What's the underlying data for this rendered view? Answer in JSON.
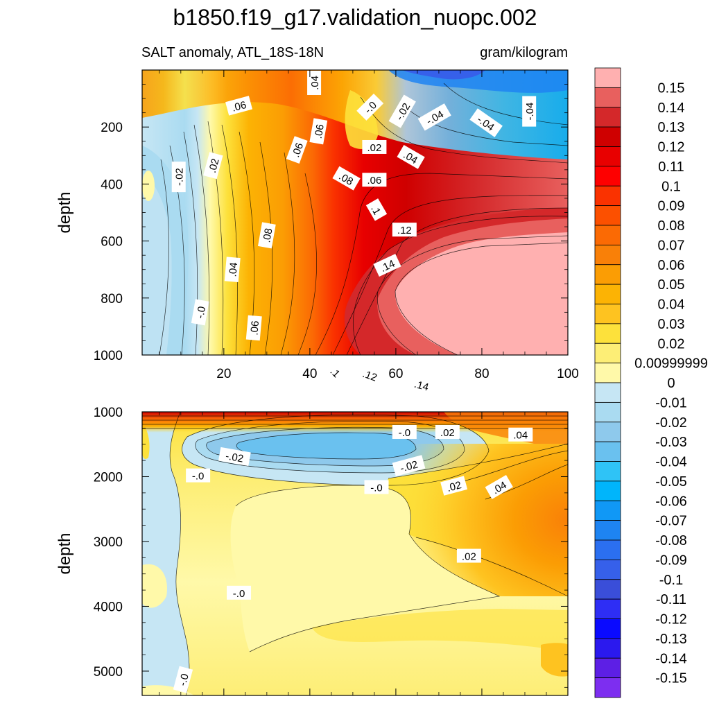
{
  "figure": {
    "title": "b1850.f19_g17.validation_nuopc.002",
    "subtitle_left": "SALT anomaly, ATL_18S-18N",
    "subtitle_right": "gram/kilogram"
  },
  "chart_data": [
    {
      "type": "heatmap",
      "panel": "upper",
      "xlabel": "",
      "ylabel": "depth",
      "xlim": [
        1,
        100
      ],
      "ylim": [
        0,
        1000
      ],
      "y_reversed": true,
      "x_ticks": [
        20,
        40,
        60,
        80,
        100
      ],
      "y_ticks": [
        200,
        400,
        600,
        800,
        1000
      ],
      "contour_labels": [
        {
          "text": ".04",
          "x": 41.0,
          "y": 45,
          "angle": -90
        },
        {
          "text": ".06",
          "x": 23.5,
          "y": 125,
          "angle": -15
        },
        {
          "text": "-.0",
          "x": 54.0,
          "y": 130,
          "angle": -45
        },
        {
          "text": "-.02",
          "x": 61.5,
          "y": 145,
          "angle": -60
        },
        {
          "text": "-.04",
          "x": 69.0,
          "y": 165,
          "angle": -30
        },
        {
          "text": "-.04",
          "x": 81.0,
          "y": 185,
          "angle": 35
        },
        {
          "text": "-.04",
          "x": 91.0,
          "y": 145,
          "angle": -90
        },
        {
          "text": ".06",
          "x": 37.0,
          "y": 280,
          "angle": -70
        },
        {
          "text": ".06",
          "x": 42.0,
          "y": 215,
          "angle": -80
        },
        {
          "text": ".02",
          "x": 55.0,
          "y": 270,
          "angle": 0
        },
        {
          "text": ".04",
          "x": 63.5,
          "y": 305,
          "angle": 30
        },
        {
          "text": ".08",
          "x": 48.5,
          "y": 380,
          "angle": 30
        },
        {
          "text": ".06",
          "x": 55.0,
          "y": 385,
          "angle": 0
        },
        {
          "text": "-.02",
          "x": 9.5,
          "y": 375,
          "angle": -90
        },
        {
          "text": ".02",
          "x": 17.5,
          "y": 335,
          "angle": -75
        },
        {
          "text": ".1",
          "x": 55.5,
          "y": 490,
          "angle": 60
        },
        {
          "text": ".12",
          "x": 62.0,
          "y": 560,
          "angle": 0
        },
        {
          "text": ".08",
          "x": 30.0,
          "y": 580,
          "angle": -80
        },
        {
          "text": ".04",
          "x": 22.0,
          "y": 700,
          "angle": -85
        },
        {
          "text": ".14",
          "x": 58.0,
          "y": 685,
          "angle": -25
        },
        {
          "text": "-.0",
          "x": 14.5,
          "y": 850,
          "angle": -80
        },
        {
          "text": ".06",
          "x": 27.0,
          "y": 905,
          "angle": -85
        },
        {
          "text": ".1",
          "x": 46.0,
          "y": 1060,
          "angle": 45
        },
        {
          "text": ".12",
          "x": 54.0,
          "y": 1070,
          "angle": 20
        },
        {
          "text": ".14",
          "x": 66.0,
          "y": 1105,
          "angle": 15
        }
      ]
    },
    {
      "type": "heatmap",
      "panel": "lower",
      "xlabel": "",
      "ylabel": "depth",
      "xlim": [
        1,
        100
      ],
      "ylim": [
        1000,
        5375
      ],
      "y_reversed": true,
      "x_ticks": [
        20,
        40,
        60,
        80,
        100
      ],
      "y_ticks": [
        1000,
        2000,
        3000,
        4000,
        5000
      ],
      "contour_labels": [
        {
          "text": "-.0",
          "x": 62.0,
          "y": 1310,
          "angle": 0
        },
        {
          "text": ".02",
          "x": 72.0,
          "y": 1310,
          "angle": 0
        },
        {
          "text": ".04",
          "x": 89.0,
          "y": 1350,
          "angle": 0
        },
        {
          "text": "-.02",
          "x": 22.5,
          "y": 1690,
          "angle": 10
        },
        {
          "text": "-.02",
          "x": 63.0,
          "y": 1830,
          "angle": -15
        },
        {
          "text": "-.0",
          "x": 14.0,
          "y": 1980,
          "angle": 0
        },
        {
          "text": "-.0",
          "x": 55.5,
          "y": 2160,
          "angle": 0
        },
        {
          "text": ".02",
          "x": 73.5,
          "y": 2140,
          "angle": -15
        },
        {
          "text": ".04",
          "x": 84.0,
          "y": 2160,
          "angle": -30
        },
        {
          "text": ".02",
          "x": 77.0,
          "y": 3220,
          "angle": 0
        },
        {
          "text": "-.0",
          "x": 23.5,
          "y": 3790,
          "angle": 0
        },
        {
          "text": "-.0",
          "x": 10.5,
          "y": 5130,
          "angle": -75
        }
      ]
    }
  ],
  "colorbar": {
    "levels": [
      "0.15",
      "0.14",
      "0.13",
      "0.12",
      "0.11",
      "0.1",
      "0.09",
      "0.08",
      "0.07",
      "0.06",
      "0.05",
      "0.04",
      "0.03",
      "0.02",
      "0.00999999",
      "0",
      "-0.01",
      "-0.02",
      "-0.03",
      "-0.04",
      "-0.05",
      "-0.06",
      "-0.07",
      "-0.08",
      "-0.09",
      "-0.1",
      "-0.11",
      "-0.12",
      "-0.13",
      "-0.14",
      "-0.15"
    ],
    "colors": [
      "#ffb0b0",
      "#e8605e",
      "#d4282a",
      "#cf0000",
      "#e80000",
      "#fe0000",
      "#fa3200",
      "#fc5000",
      "#fb6a04",
      "#f98008",
      "#fb9d04",
      "#fcb304",
      "#fec320",
      "#fde13b",
      "#fdee76",
      "#fff9a9",
      "#c6e6f4",
      "#aadbf1",
      "#8ec9ec",
      "#6ac1ef",
      "#2fc3f6",
      "#00b5fb",
      "#1098f6",
      "#1e84f2",
      "#2b6ff0",
      "#3660ea",
      "#3a4ed9",
      "#2e2ef5",
      "#0a0aff",
      "#2b19ee",
      "#5d1fe5",
      "#7d2ef0"
    ]
  }
}
